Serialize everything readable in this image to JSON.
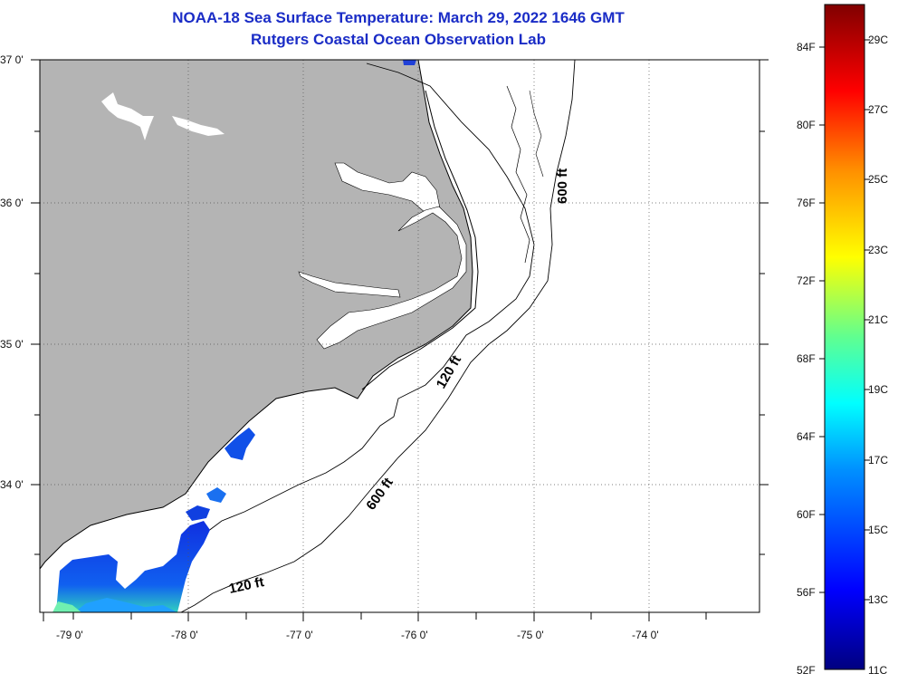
{
  "header": {
    "title": "NOAA-18 Sea Surface Temperature:  March 29, 2022 1646 GMT",
    "subtitle": "Rutgers Coastal Ocean Observation Lab"
  },
  "map": {
    "lat_labels": [
      "37 0'",
      "36 0'",
      "35 0'",
      "34 0'"
    ],
    "lon_labels": [
      "-79 0'",
      "-78 0'",
      "-77 0'",
      "-76 0'",
      "-75 0'",
      "-74 0'"
    ],
    "contour_labels": [
      "600 ft",
      "120 ft",
      "600 ft",
      "120 ft"
    ],
    "land_color": "#b4b4b4",
    "ocean_color": "#ffffff"
  },
  "colorbar": {
    "f_labels": [
      "84F",
      "80F",
      "76F",
      "72F",
      "68F",
      "64F",
      "60F",
      "56F",
      "52F"
    ],
    "c_labels": [
      "29C",
      "27C",
      "25C",
      "23C",
      "21C",
      "19C",
      "17C",
      "15C",
      "13C",
      "11C"
    ],
    "colors": [
      "#000080",
      "#0000ff",
      "#00a0ff",
      "#00ffff",
      "#80ff80",
      "#ffff00",
      "#ff8000",
      "#ff0000",
      "#800000"
    ]
  }
}
